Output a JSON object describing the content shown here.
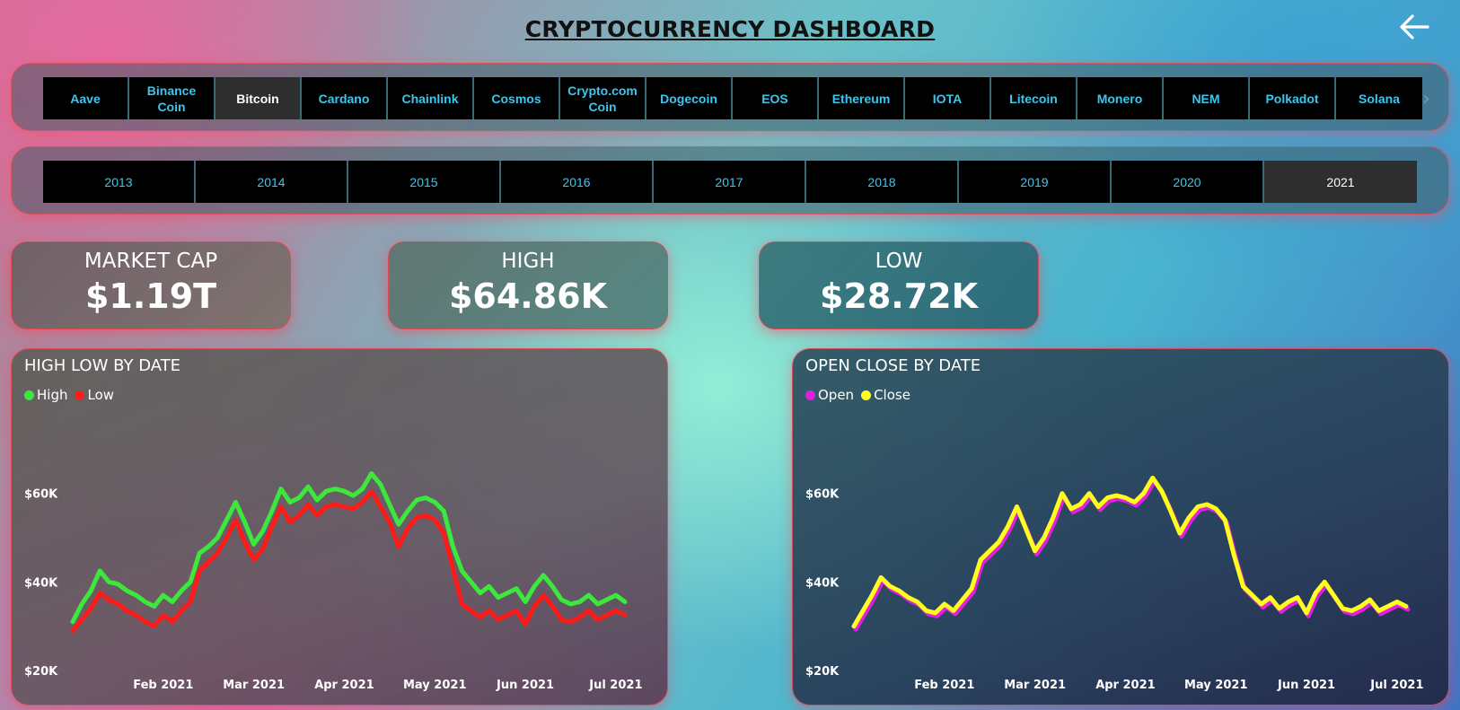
{
  "header": {
    "title": "CRYPTOCURRENCY DASHBOARD",
    "back_icon": "arrow-left-icon"
  },
  "coins": {
    "items": [
      "Aave",
      "Binance Coin",
      "Bitcoin",
      "Cardano",
      "Chainlink",
      "Cosmos",
      "Crypto.com Coin",
      "Dogecoin",
      "EOS",
      "Ethereum",
      "IOTA",
      "Litecoin",
      "Monero",
      "NEM",
      "Polkadot",
      "Solana"
    ],
    "selected": "Bitcoin",
    "scroll_icon": "chevron-right-icon"
  },
  "years": {
    "items": [
      "2013",
      "2014",
      "2015",
      "2016",
      "2017",
      "2018",
      "2019",
      "2020",
      "2021"
    ],
    "selected": "2021"
  },
  "kpis": [
    {
      "label": "MARKET CAP",
      "value": "$1.19T"
    },
    {
      "label": "HIGH",
      "value": "$64.86K"
    },
    {
      "label": "LOW",
      "value": "$28.72K"
    }
  ],
  "colors": {
    "button_text": "#3cc6ee",
    "high": "#3de83d",
    "low": "#ff1a1a",
    "open": "#e21ee2",
    "close": "#ffff1a"
  },
  "chart_data": [
    {
      "type": "line",
      "title": "HIGH LOW BY DATE",
      "legend_position": "top-left",
      "x_tick_labels": [
        "Feb 2021",
        "Mar 2021",
        "Apr 2021",
        "May 2021",
        "Jun 2021",
        "Jul 2021"
      ],
      "x_tick_months": [
        1,
        2,
        3,
        4,
        5,
        6
      ],
      "y_ticks": [
        20000,
        40000,
        60000
      ],
      "y_tick_labels": [
        "$20K",
        "$40K",
        "$60K"
      ],
      "ylim": [
        20000,
        65000
      ],
      "x_months": [
        0.0,
        0.1,
        0.2,
        0.3,
        0.4,
        0.5,
        0.6,
        0.7,
        0.8,
        0.9,
        1.0,
        1.1,
        1.2,
        1.3,
        1.4,
        1.5,
        1.6,
        1.7,
        1.8,
        1.9,
        2.0,
        2.1,
        2.2,
        2.3,
        2.4,
        2.5,
        2.6,
        2.7,
        2.8,
        2.9,
        3.0,
        3.1,
        3.2,
        3.3,
        3.4,
        3.5,
        3.6,
        3.7,
        3.8,
        3.9,
        4.0,
        4.1,
        4.2,
        4.3,
        4.4,
        4.5,
        4.6,
        4.7,
        4.8,
        4.9,
        5.0,
        5.1,
        5.2,
        5.3,
        5.4,
        5.5,
        5.6,
        5.7,
        5.8,
        5.9,
        6.0,
        6.1
      ],
      "series": [
        {
          "name": "High",
          "values": [
            31000,
            35000,
            38000,
            42500,
            40000,
            39500,
            38000,
            37000,
            35500,
            34500,
            37000,
            35500,
            38000,
            40000,
            46500,
            48000,
            50000,
            54000,
            58000,
            53500,
            48500,
            51500,
            56000,
            61000,
            58000,
            59000,
            61500,
            58500,
            60500,
            61000,
            60500,
            59500,
            61000,
            64500,
            62000,
            57500,
            53000,
            56000,
            58500,
            59000,
            58000,
            56000,
            48000,
            42500,
            40000,
            37500,
            39000,
            36500,
            37500,
            38500,
            35500,
            39000,
            41500,
            39000,
            36000,
            35000,
            35500,
            37000,
            35000,
            36000,
            37000,
            35500
          ]
        },
        {
          "name": "Low",
          "values": [
            29000,
            31500,
            34000,
            37500,
            36000,
            35000,
            33500,
            32500,
            31000,
            30000,
            32500,
            31000,
            33500,
            35500,
            42500,
            44500,
            46500,
            50000,
            54000,
            49000,
            45000,
            47500,
            52500,
            57000,
            53500,
            55000,
            57500,
            55000,
            57000,
            57500,
            57000,
            56500,
            58000,
            60500,
            57000,
            53500,
            48000,
            52000,
            54500,
            55000,
            54000,
            51000,
            43000,
            35000,
            33500,
            32000,
            33500,
            31500,
            32500,
            33500,
            30500,
            34500,
            37000,
            34500,
            31500,
            31000,
            32000,
            33500,
            31500,
            32500,
            33500,
            32500
          ]
        }
      ]
    },
    {
      "type": "line",
      "title": "OPEN CLOSE BY DATE",
      "legend_position": "top-left",
      "x_tick_labels": [
        "Feb 2021",
        "Mar 2021",
        "Apr 2021",
        "May 2021",
        "Jun 2021",
        "Jul 2021"
      ],
      "x_tick_months": [
        1,
        2,
        3,
        4,
        5,
        6
      ],
      "y_ticks": [
        20000,
        40000,
        60000
      ],
      "y_tick_labels": [
        "$20K",
        "$40K",
        "$60K"
      ],
      "ylim": [
        20000,
        65000
      ],
      "x_months": [
        0.0,
        0.1,
        0.2,
        0.3,
        0.4,
        0.5,
        0.6,
        0.7,
        0.8,
        0.9,
        1.0,
        1.1,
        1.2,
        1.3,
        1.4,
        1.5,
        1.6,
        1.7,
        1.8,
        1.9,
        2.0,
        2.1,
        2.2,
        2.3,
        2.4,
        2.5,
        2.6,
        2.7,
        2.8,
        2.9,
        3.0,
        3.1,
        3.2,
        3.3,
        3.4,
        3.5,
        3.6,
        3.7,
        3.8,
        3.9,
        4.0,
        4.1,
        4.2,
        4.3,
        4.4,
        4.5,
        4.6,
        4.7,
        4.8,
        4.9,
        5.0,
        5.1,
        5.2,
        5.3,
        5.4,
        5.5,
        5.6,
        5.7,
        5.8,
        5.9,
        6.0,
        6.1
      ],
      "series": [
        {
          "name": "Open",
          "values": [
            29500,
            33000,
            36500,
            40500,
            38500,
            37500,
            36000,
            35000,
            33000,
            32500,
            34500,
            33000,
            35500,
            38000,
            44500,
            46500,
            48500,
            52000,
            56500,
            51500,
            46500,
            49500,
            54000,
            59500,
            56000,
            57000,
            59500,
            56500,
            58500,
            59000,
            58500,
            57500,
            59500,
            63000,
            60000,
            55500,
            50500,
            54000,
            56500,
            57000,
            56000,
            53500,
            45500,
            38500,
            36500,
            34500,
            36000,
            33500,
            35000,
            36000,
            32500,
            37000,
            39500,
            36500,
            33500,
            33000,
            34000,
            35500,
            33000,
            34000,
            35000,
            34000
          ]
        },
        {
          "name": "Close",
          "values": [
            30000,
            33500,
            37000,
            41000,
            39000,
            38000,
            36500,
            35500,
            33500,
            33000,
            35000,
            33500,
            36000,
            38500,
            45000,
            47000,
            49000,
            52500,
            57000,
            52000,
            47000,
            50000,
            54500,
            60000,
            56500,
            57500,
            60000,
            57000,
            59000,
            59500,
            59000,
            58000,
            60000,
            63500,
            60500,
            56000,
            51000,
            54500,
            57000,
            57500,
            56500,
            54000,
            46000,
            39000,
            37000,
            35000,
            36500,
            34000,
            35500,
            36500,
            33000,
            37500,
            40000,
            37000,
            34000,
            33500,
            34500,
            36000,
            33500,
            34500,
            35500,
            34500
          ]
        }
      ]
    }
  ]
}
